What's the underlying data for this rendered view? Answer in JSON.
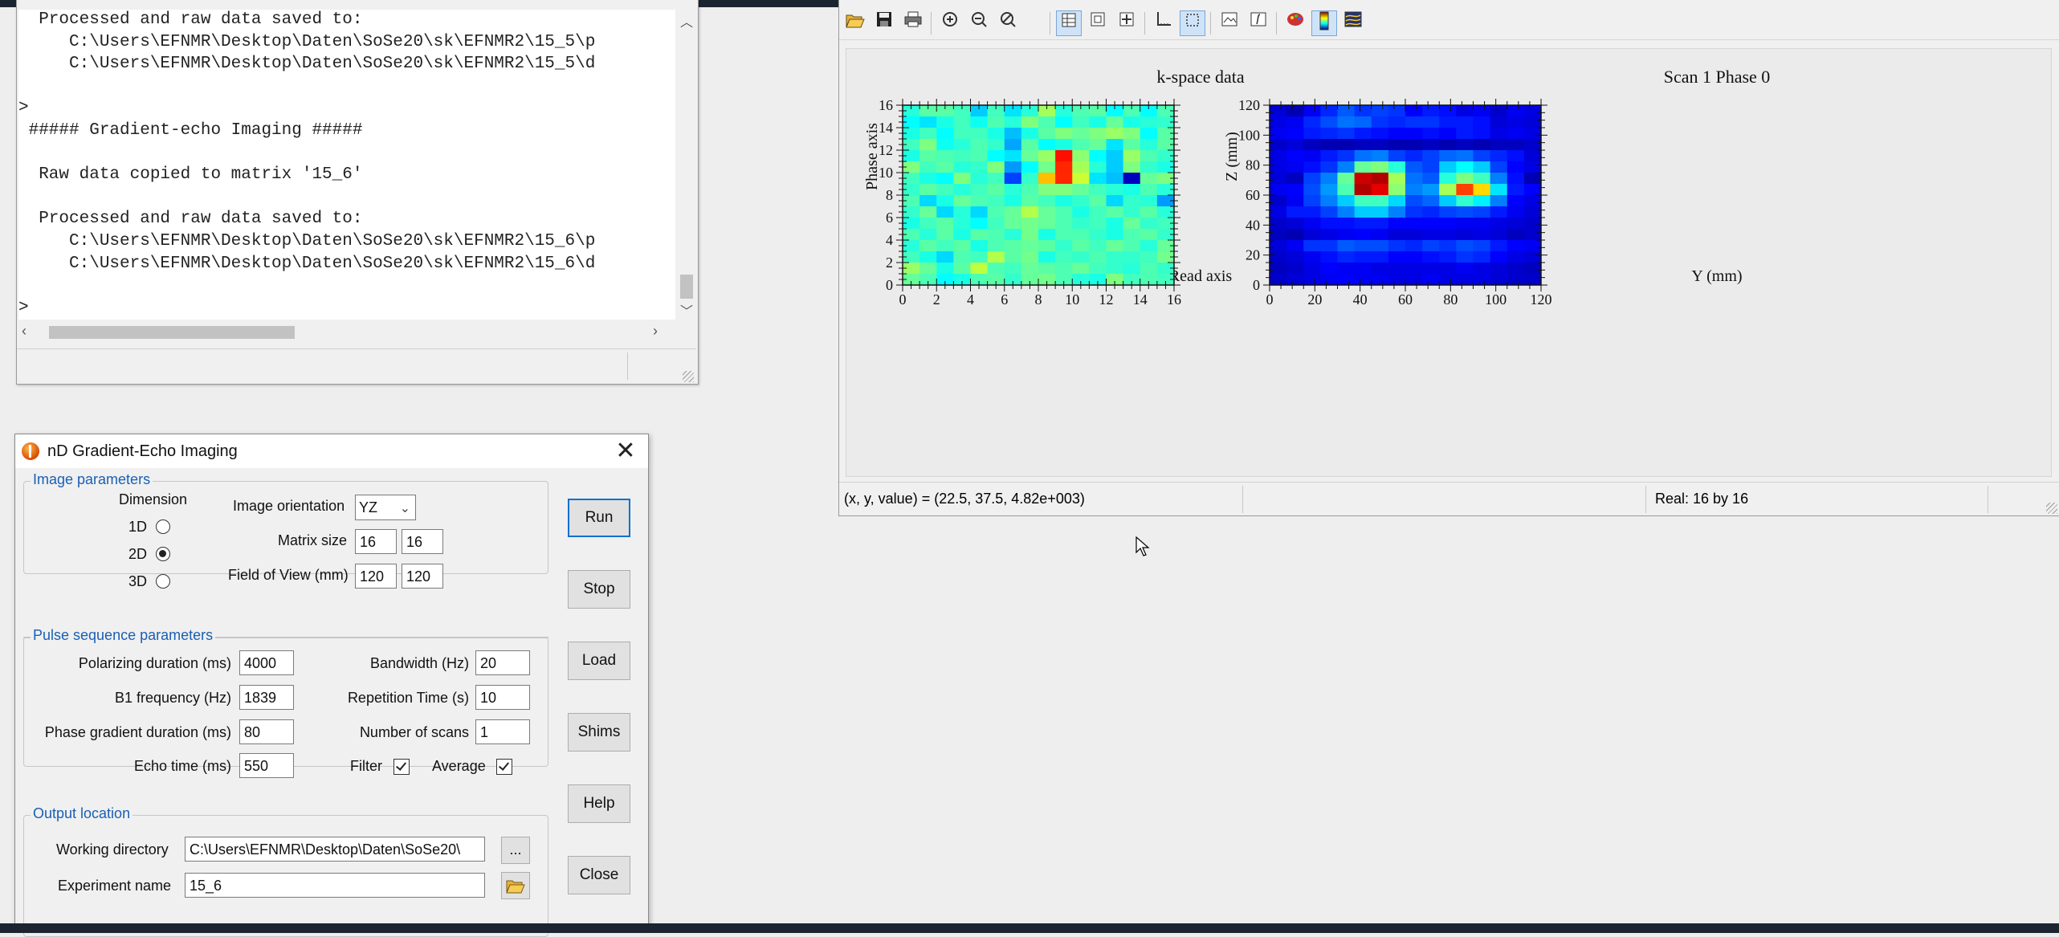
{
  "console": {
    "lines": [
      "  Processed and raw data saved to:",
      "     C:\\Users\\EFNMR\\Desktop\\Daten\\SoSe20\\sk\\EFNMR2\\15_5\\p",
      "     C:\\Users\\EFNMR\\Desktop\\Daten\\SoSe20\\sk\\EFNMR2\\15_5\\d",
      "",
      ">",
      " ##### Gradient-echo Imaging #####",
      "",
      "  Raw data copied to matrix '15_6'",
      "",
      "  Processed and raw data saved to:",
      "     C:\\Users\\EFNMR\\Desktop\\Daten\\SoSe20\\sk\\EFNMR2\\15_6\\p",
      "     C:\\Users\\EFNMR\\Desktop\\Daten\\SoSe20\\sk\\EFNMR2\\15_6\\d",
      "",
      ">"
    ]
  },
  "dialog": {
    "title": "nD Gradient-Echo Imaging",
    "close_glyph": "✕",
    "image_params": {
      "label": "Image parameters",
      "dimension_label": "Dimension",
      "dims": [
        {
          "label": "1D",
          "selected": false
        },
        {
          "label": "2D",
          "selected": true
        },
        {
          "label": "3D",
          "selected": false
        }
      ],
      "orientation_label": "Image orientation",
      "orientation_value": "YZ",
      "matrix_label": "Matrix size",
      "matrix": [
        "16",
        "16"
      ],
      "fov_label": "Field of View (mm)",
      "fov": [
        "120",
        "120"
      ]
    },
    "pulse_params": {
      "label": "Pulse sequence parameters",
      "polarizing_label": "Polarizing duration (ms)",
      "polarizing": "4000",
      "b1_label": "B1 frequency (Hz)",
      "b1": "1839",
      "phase_grad_label": "Phase gradient duration (ms)",
      "phase_grad": "80",
      "echo_label": "Echo time (ms)",
      "echo": "550",
      "bandwidth_label": "Bandwidth (Hz)",
      "bandwidth": "20",
      "rep_label": "Repetition Time (s)",
      "rep": "10",
      "scans_label": "Number of scans",
      "scans": "1",
      "filter_label": "Filter",
      "filter_checked": true,
      "average_label": "Average",
      "average_checked": true
    },
    "output": {
      "label": "Output location",
      "workdir_label": "Working directory",
      "workdir": "C:\\Users\\EFNMR\\Desktop\\Daten\\SoSe20\\",
      "browse_label": "...",
      "expname_label": "Experiment name",
      "expname": "15_6"
    },
    "buttons": {
      "run": "Run",
      "stop": "Stop",
      "load": "Load",
      "shims": "Shims",
      "help": "Help",
      "close": "Close"
    }
  },
  "plot_window": {
    "status_left": "(x, y, value) = (22.5, 37.5, 4.82e+003)",
    "status_right": "Real: 16 by 16"
  },
  "colors": {
    "jet": [
      "#00007f",
      "#0000ff",
      "#007fff",
      "#00ffff",
      "#7fff7f",
      "#ffff00",
      "#ff7f00",
      "#ff0000",
      "#7f0000"
    ]
  },
  "chart_data": [
    {
      "type": "heatmap",
      "title": "k-space data",
      "xlabel": "Read axis",
      "ylabel": "Phase axis",
      "xlim": [
        0,
        16
      ],
      "ylim": [
        0,
        16
      ],
      "xticks": [
        "0",
        "2",
        "4",
        "6",
        "8",
        "10",
        "12",
        "14",
        "16"
      ],
      "yticks": [
        "0",
        "2",
        "4",
        "6",
        "8",
        "10",
        "12",
        "14",
        "16"
      ],
      "rows_top_to_bottom": [
        [
          3.3,
          3.7,
          3.7,
          3.5,
          2.6,
          3.5,
          2.8,
          3.3,
          4.3,
          3.3,
          3.6,
          3.7,
          3.0,
          3.6,
          3.0,
          3.6
        ],
        [
          3.0,
          2.8,
          3.2,
          3.5,
          3.1,
          3.6,
          3.3,
          4.0,
          3.6,
          3.0,
          3.5,
          3.2,
          3.8,
          3.2,
          3.3,
          3.4
        ],
        [
          3.2,
          3.5,
          3.0,
          3.5,
          3.5,
          3.2,
          2.5,
          3.2,
          3.7,
          4.0,
          3.8,
          4.0,
          4.2,
          4.0,
          3.0,
          3.7
        ],
        [
          3.5,
          4.0,
          3.1,
          3.3,
          3.6,
          3.4,
          2.3,
          3.7,
          3.0,
          3.2,
          3.6,
          3.8,
          2.8,
          3.7,
          3.3,
          3.7
        ],
        [
          3.2,
          3.7,
          3.6,
          3.5,
          3.6,
          3.0,
          2.8,
          3.8,
          4.2,
          6.9,
          4.1,
          3.0,
          2.6,
          4.2,
          3.6,
          3.4
        ],
        [
          4.0,
          3.5,
          3.7,
          3.3,
          3.4,
          4.0,
          2.2,
          3.0,
          3.9,
          6.7,
          4.3,
          3.3,
          2.6,
          4.0,
          3.4,
          3.2
        ],
        [
          3.5,
          3.2,
          3.0,
          4.0,
          3.3,
          3.5,
          1.5,
          3.4,
          5.5,
          6.7,
          4.6,
          2.8,
          2.5,
          0.5,
          3.8,
          4.0
        ],
        [
          3.4,
          3.7,
          3.5,
          3.3,
          3.5,
          3.7,
          3.3,
          3.6,
          4.0,
          4.0,
          3.8,
          3.5,
          3.3,
          3.2,
          3.6,
          3.3
        ],
        [
          3.6,
          2.7,
          3.2,
          3.8,
          3.6,
          3.5,
          3.2,
          3.7,
          3.5,
          3.2,
          3.4,
          3.7,
          2.7,
          3.4,
          3.3,
          2.2
        ],
        [
          3.4,
          3.8,
          2.7,
          3.3,
          2.7,
          3.6,
          3.8,
          4.4,
          3.8,
          3.6,
          3.2,
          3.5,
          3.7,
          3.4,
          3.7,
          3.3
        ],
        [
          3.2,
          3.5,
          3.7,
          3.3,
          3.0,
          3.5,
          3.8,
          3.9,
          3.8,
          3.6,
          3.4,
          3.5,
          3.2,
          3.8,
          3.4,
          3.5
        ],
        [
          3.6,
          3.3,
          3.7,
          3.2,
          3.7,
          3.6,
          3.3,
          3.9,
          3.2,
          3.6,
          3.6,
          3.4,
          3.2,
          3.6,
          3.7,
          3.4
        ],
        [
          3.3,
          3.7,
          3.5,
          3.7,
          3.2,
          3.6,
          3.7,
          3.8,
          3.7,
          3.4,
          3.7,
          3.5,
          3.8,
          3.6,
          3.3,
          3.8
        ],
        [
          3.5,
          3.2,
          2.7,
          3.6,
          3.5,
          4.4,
          3.7,
          3.9,
          3.2,
          3.5,
          3.4,
          3.6,
          3.4,
          3.4,
          3.5,
          3.9
        ],
        [
          4.2,
          3.8,
          3.2,
          3.7,
          4.5,
          3.6,
          3.5,
          3.8,
          3.7,
          3.6,
          3.8,
          3.5,
          3.4,
          3.3,
          3.6,
          3.4
        ],
        [
          3.8,
          3.6,
          3.0,
          3.2,
          3.6,
          3.7,
          3.4,
          3.8,
          3.9,
          3.6,
          3.3,
          3.2,
          4.0,
          3.5,
          3.6,
          3.5
        ]
      ]
    },
    {
      "type": "heatmap",
      "title": "Scan 1 Phase 0",
      "xlabel": "Y (mm)",
      "ylabel": "Z (mm)",
      "xlim": [
        0,
        120
      ],
      "ylim": [
        0,
        120
      ],
      "xticks": [
        "0",
        "20",
        "40",
        "60",
        "80",
        "100",
        "120"
      ],
      "yticks": [
        "0",
        "20",
        "40",
        "60",
        "80",
        "100",
        "120"
      ],
      "rows_top_to_bottom": [
        [
          0.7,
          0.4,
          0.9,
          1.3,
          1.7,
          1.4,
          1.5,
          1.4,
          1.0,
          1.2,
          1.1,
          0.8,
          0.9,
          0.6,
          0.9,
          0.8
        ],
        [
          0.8,
          0.9,
          1.3,
          1.6,
          1.9,
          1.8,
          1.4,
          1.3,
          1.4,
          1.4,
          1.2,
          1.2,
          1.1,
          0.7,
          0.8,
          0.7
        ],
        [
          0.9,
          1.0,
          1.2,
          1.3,
          1.4,
          1.2,
          1.1,
          1.0,
          1.0,
          1.1,
          1.0,
          1.2,
          1.1,
          0.8,
          0.9,
          0.8
        ],
        [
          0.6,
          0.7,
          0.5,
          0.4,
          0.4,
          0.5,
          0.5,
          0.4,
          0.4,
          0.5,
          0.4,
          0.5,
          0.4,
          0.5,
          0.5,
          0.6
        ],
        [
          0.8,
          1.0,
          0.9,
          1.2,
          1.4,
          1.9,
          2.0,
          1.5,
          1.3,
          1.5,
          1.8,
          1.9,
          1.5,
          1.3,
          1.1,
          0.7
        ],
        [
          0.8,
          0.9,
          1.1,
          1.4,
          2.0,
          3.8,
          4.0,
          3.3,
          1.7,
          1.5,
          2.6,
          3.0,
          2.6,
          1.5,
          1.0,
          0.8
        ],
        [
          0.7,
          0.5,
          1.5,
          2.0,
          3.8,
          7.4,
          7.6,
          4.3,
          1.9,
          1.7,
          3.3,
          4.0,
          3.5,
          2.0,
          1.1,
          0.4
        ],
        [
          0.9,
          1.0,
          1.6,
          2.2,
          3.6,
          7.6,
          7.2,
          4.1,
          2.0,
          2.2,
          4.3,
          6.5,
          5.3,
          2.8,
          1.2,
          1.0
        ],
        [
          0.6,
          0.9,
          1.5,
          2.0,
          2.6,
          3.5,
          3.5,
          2.7,
          1.6,
          1.8,
          2.6,
          3.4,
          2.9,
          2.0,
          1.0,
          0.8
        ],
        [
          0.8,
          1.2,
          1.2,
          1.5,
          2.0,
          2.6,
          2.6,
          2.0,
          1.4,
          1.3,
          1.5,
          1.6,
          1.5,
          1.2,
          0.9,
          0.7
        ],
        [
          0.6,
          0.7,
          0.9,
          1.1,
          1.1,
          1.2,
          1.2,
          1.0,
          1.0,
          1.0,
          1.0,
          0.9,
          0.9,
          0.8,
          0.7,
          0.6
        ],
        [
          0.5,
          0.4,
          0.7,
          0.8,
          0.9,
          1.0,
          0.9,
          0.7,
          0.7,
          0.8,
          0.8,
          0.7,
          0.8,
          0.7,
          0.5,
          0.6
        ],
        [
          0.7,
          0.9,
          1.4,
          1.4,
          1.7,
          1.6,
          1.6,
          1.4,
          1.3,
          1.5,
          1.4,
          1.6,
          1.5,
          1.2,
          1.0,
          0.9
        ],
        [
          0.6,
          0.7,
          0.9,
          1.1,
          1.3,
          1.2,
          1.2,
          1.0,
          1.0,
          1.1,
          1.2,
          1.4,
          1.3,
          1.0,
          0.8,
          0.7
        ],
        [
          0.5,
          0.6,
          0.8,
          1.0,
          0.9,
          0.9,
          0.8,
          0.8,
          0.8,
          0.8,
          0.8,
          0.9,
          0.8,
          0.7,
          0.6,
          0.5
        ],
        [
          0.6,
          0.7,
          0.8,
          0.9,
          1.0,
          0.9,
          0.9,
          0.8,
          0.8,
          0.9,
          0.8,
          0.8,
          0.8,
          0.7,
          0.6,
          0.6
        ]
      ]
    }
  ]
}
